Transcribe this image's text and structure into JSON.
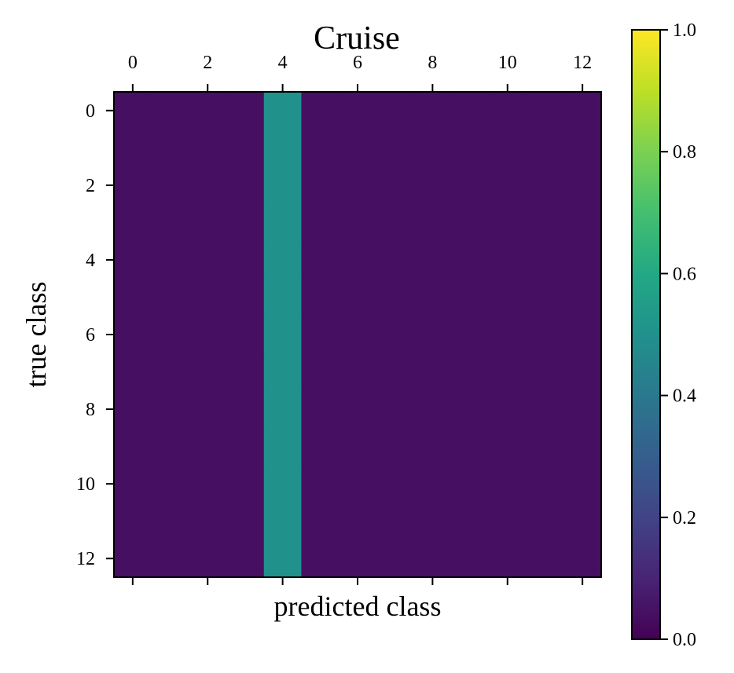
{
  "chart_data": {
    "type": "heatmap",
    "title": "Cruise",
    "xlabel": "predicted class",
    "ylabel": "true class",
    "n_rows": 13,
    "n_cols": 13,
    "cell_value_rule": "all rows identical; column 4 = 0.5, all other columns = 0.04",
    "column_values": [
      0.04,
      0.04,
      0.04,
      0.04,
      0.5,
      0.04,
      0.04,
      0.04,
      0.04,
      0.04,
      0.04,
      0.04,
      0.04
    ],
    "x_ticks": [
      0,
      2,
      4,
      6,
      8,
      10,
      12
    ],
    "x_tick_labels": [
      "0",
      "2",
      "4",
      "6",
      "8",
      "10",
      "12"
    ],
    "y_ticks": [
      0,
      2,
      4,
      6,
      8,
      10,
      12
    ],
    "y_tick_labels": [
      "0",
      "2",
      "4",
      "6",
      "8",
      "10",
      "12"
    ],
    "xaxis_position": "top",
    "colormap": "viridis",
    "colorbar": {
      "range": [
        0.0,
        1.0
      ],
      "ticks": [
        0.0,
        0.2,
        0.4,
        0.6,
        0.8,
        1.0
      ],
      "tick_labels": [
        "0.0",
        "0.2",
        "0.4",
        "0.6",
        "0.8",
        "1.0"
      ],
      "position": "right"
    },
    "grid": false
  }
}
